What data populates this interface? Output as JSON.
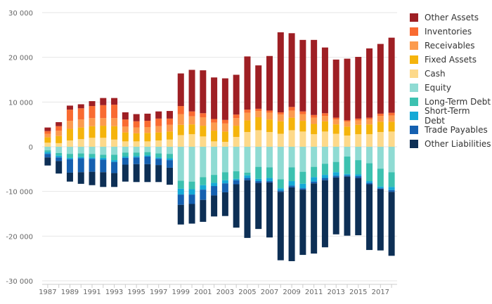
{
  "chart_data": {
    "type": "bar",
    "stacked": true,
    "title": "",
    "xlabel": "",
    "ylabel": "",
    "ylim": [
      -30000,
      30000
    ],
    "yticks": [
      30000,
      20000,
      10000,
      0,
      -10000,
      -20000,
      -30000
    ],
    "ytick_labels": [
      "30 000",
      "20 000",
      "10 000",
      "0",
      "-10 000",
      "-20 000",
      "-30 000"
    ],
    "xtick_labels": [
      "1987",
      "1989",
      "1991",
      "1993",
      "1995",
      "1997",
      "1999",
      "2001",
      "2003",
      "2005",
      "2007",
      "2009",
      "2011",
      "2013",
      "2015",
      "2017"
    ],
    "categories": [
      1987,
      1988,
      1989,
      1990,
      1991,
      1992,
      1993,
      1994,
      1995,
      1996,
      1997,
      1998,
      1999,
      2000,
      2001,
      2002,
      2003,
      2004,
      2005,
      2006,
      2007,
      2008,
      2009,
      2010,
      2011,
      2012,
      2013,
      2014,
      2015,
      2016,
      2017,
      2018
    ],
    "legend_position": "right",
    "asset_series": [
      {
        "name": "Cash",
        "color": "#fdd98a",
        "values": [
          900,
          800,
          1400,
          1700,
          2000,
          2000,
          1600,
          1200,
          1200,
          1200,
          1400,
          1600,
          2600,
          2800,
          2300,
          1200,
          1100,
          2200,
          3300,
          3700,
          3300,
          2900,
          3700,
          3400,
          2800,
          3400,
          2900,
          2500,
          2800,
          2800,
          3300,
          3400
        ]
      },
      {
        "name": "Fixed Assets",
        "color": "#f5b40c",
        "values": [
          1200,
          1600,
          2600,
          2600,
          2600,
          2700,
          3000,
          2000,
          1800,
          1900,
          1800,
          1800,
          2300,
          2200,
          2400,
          2400,
          2300,
          2500,
          2600,
          2900,
          2800,
          2800,
          2800,
          2400,
          2300,
          2300,
          2100,
          2000,
          2100,
          2200,
          2300,
          2200
        ]
      },
      {
        "name": "Receivables",
        "color": "#fc9b4e",
        "values": [
          800,
          1200,
          1800,
          1800,
          1800,
          1700,
          1800,
          1300,
          1300,
          1300,
          1400,
          1500,
          2400,
          1800,
          1900,
          1800,
          1800,
          1700,
          1700,
          1400,
          1500,
          1500,
          1600,
          1500,
          1400,
          1200,
          1100,
          1100,
          1000,
          1100,
          1300,
          1400
        ]
      },
      {
        "name": "Inventories",
        "color": "#f96b31",
        "values": [
          600,
          1000,
          2500,
          2500,
          2700,
          2900,
          3000,
          1600,
          1400,
          1400,
          1700,
          1400,
          1800,
          1100,
          900,
          800,
          800,
          800,
          700,
          500,
          500,
          500,
          800,
          600,
          600,
          600,
          400,
          300,
          400,
          400,
          500,
          600
        ]
      },
      {
        "name": "Other Assets",
        "color": "#9e1f24",
        "values": [
          800,
          900,
          900,
          900,
          1100,
          1600,
          1500,
          1600,
          1600,
          1600,
          1600,
          1700,
          7300,
          9300,
          9600,
          9300,
          9300,
          8900,
          11900,
          9700,
          12200,
          17900,
          16500,
          16000,
          16800,
          14700,
          13000,
          13800,
          13800,
          15500,
          15600,
          16800
        ]
      }
    ],
    "liability_series": [
      {
        "name": "Equity",
        "color": "#8fdbd3",
        "values": [
          800,
          1400,
          1600,
          1500,
          1600,
          1800,
          1800,
          1300,
          1300,
          1200,
          1500,
          1600,
          7600,
          7800,
          6800,
          6300,
          5700,
          5500,
          5800,
          4500,
          4600,
          7300,
          4600,
          5600,
          4500,
          3800,
          3400,
          2200,
          3000,
          3700,
          4900,
          5700
        ]
      },
      {
        "name": "Long-Term Debt",
        "color": "#3cc1b0",
        "values": [
          400,
          600,
          900,
          800,
          800,
          700,
          1200,
          900,
          800,
          700,
          900,
          1000,
          1800,
          1700,
          1800,
          1800,
          1800,
          1700,
          600,
          2700,
          2400,
          2000,
          3100,
          2700,
          2300,
          2500,
          2300,
          3900,
          3200,
          4000,
          4000,
          3300
        ]
      },
      {
        "name": "Short-Term Debt",
        "color": "#16a9d6",
        "values": [
          400,
          400,
          300,
          300,
          300,
          400,
          400,
          300,
          300,
          300,
          300,
          400,
          1300,
          1200,
          1000,
          700,
          700,
          300,
          600,
          500,
          700,
          500,
          1000,
          1000,
          1000,
          700,
          800,
          300,
          400,
          400,
          400,
          700
        ]
      },
      {
        "name": "Trade Payables",
        "color": "#1560b0",
        "values": [
          800,
          800,
          3000,
          3100,
          2900,
          2800,
          2500,
          1500,
          1500,
          1700,
          1400,
          1700,
          2300,
          2100,
          2300,
          2100,
          2000,
          900,
          500,
          400,
          300,
          300,
          400,
          300,
          400,
          500,
          400,
          300,
          400,
          300,
          200,
          400
        ]
      },
      {
        "name": "Other Liabilities",
        "color": "#0d2f55",
        "values": [
          1800,
          2800,
          2000,
          2600,
          3000,
          3300,
          3100,
          3800,
          4000,
          4000,
          3800,
          3800,
          4400,
          4400,
          4900,
          4700,
          5300,
          9700,
          12900,
          10300,
          12300,
          15300,
          16500,
          14600,
          15700,
          15000,
          12700,
          13200,
          12800,
          14700,
          13700,
          14300
        ]
      }
    ],
    "legend_order": [
      "Other Assets",
      "Inventories",
      "Receivables",
      "Fixed Assets",
      "Cash",
      "Equity",
      "Long-Term Debt",
      "Short-Term Debt",
      "Trade Payables",
      "Other Liabilities"
    ]
  }
}
